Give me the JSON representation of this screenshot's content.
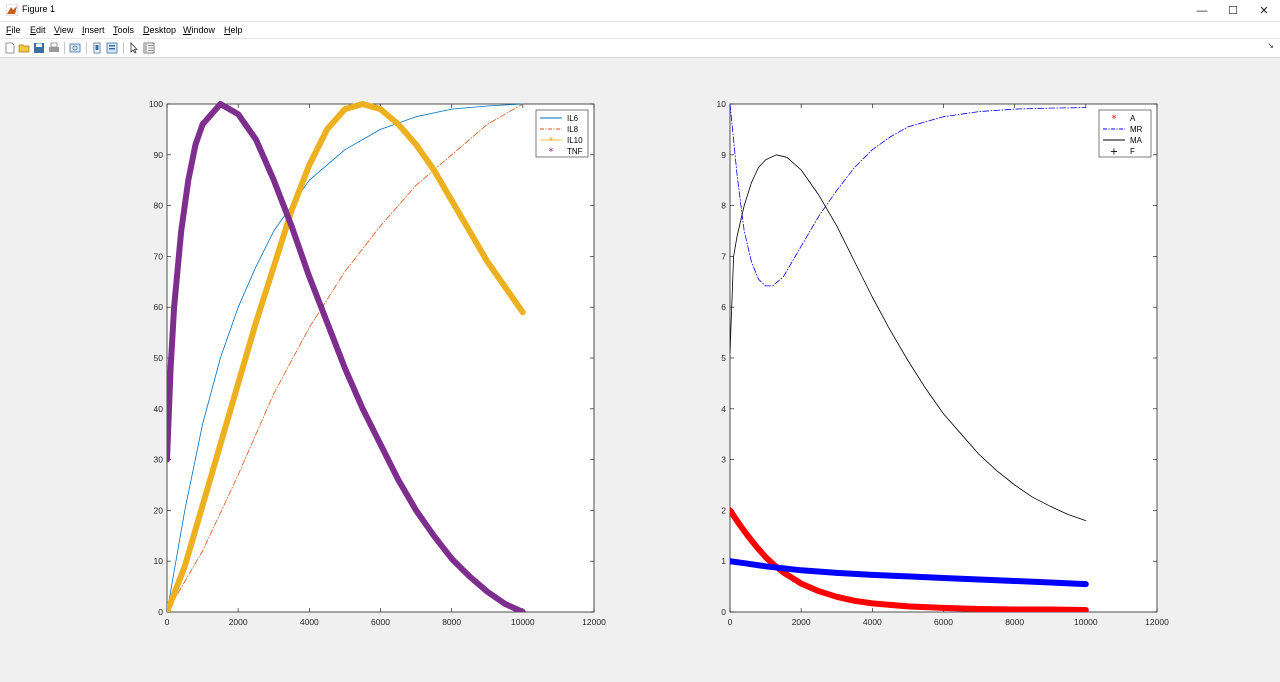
{
  "window": {
    "title": "Figure 1"
  },
  "menu": [
    "File",
    "Edit",
    "View",
    "Insert",
    "Tools",
    "Desktop",
    "Window",
    "Help"
  ],
  "toolbar": [
    "new-figure",
    "open-file",
    "save",
    "print",
    "print-preview",
    "toggle-legend",
    "insert-colorbar",
    "pointer",
    "toggle-property-editor"
  ],
  "colors": {
    "il6": "#0072bd",
    "il8": "#d95319",
    "il10": "#edb120",
    "tnf": "#7e2f8e",
    "a": "#ff0000",
    "mr": "#0000ff",
    "ma": "#000000",
    "f": "#0000ff"
  },
  "chart_data": [
    {
      "type": "line",
      "xlim": [
        0,
        12000
      ],
      "ylim": [
        0,
        100
      ],
      "xticks": [
        "0",
        "2000",
        "4000",
        "6000",
        "8000",
        "10000",
        "12000"
      ],
      "yticks": [
        "0",
        "10",
        "20",
        "30",
        "40",
        "50",
        "60",
        "70",
        "80",
        "90",
        "100"
      ],
      "legend": {
        "position": "top-right",
        "entries": [
          "IL6",
          "IL8",
          "IL10",
          "TNF"
        ]
      },
      "series": [
        {
          "name": "IL6",
          "style": "solid",
          "color": "#0072bd",
          "width": 0.8,
          "points": [
            [
              0,
              0
            ],
            [
              500,
              20
            ],
            [
              1000,
              37
            ],
            [
              1500,
              50
            ],
            [
              2000,
              60
            ],
            [
              2500,
              68
            ],
            [
              3000,
              75
            ],
            [
              3500,
              80
            ],
            [
              4000,
              85
            ],
            [
              5000,
              91
            ],
            [
              6000,
              95
            ],
            [
              7000,
              97.5
            ],
            [
              8000,
              99
            ],
            [
              9000,
              99.6
            ],
            [
              10000,
              100
            ]
          ]
        },
        {
          "name": "IL8",
          "style": "dashdot",
          "color": "#d95319",
          "width": 0.8,
          "points": [
            [
              0,
              0
            ],
            [
              1000,
              12
            ],
            [
              2000,
              27
            ],
            [
              3000,
              43
            ],
            [
              4000,
              56
            ],
            [
              5000,
              67
            ],
            [
              6000,
              76
            ],
            [
              7000,
              84
            ],
            [
              8000,
              90
            ],
            [
              9000,
              96
            ],
            [
              10000,
              100
            ]
          ]
        },
        {
          "name": "IL10",
          "style": "thick",
          "color": "#edb120",
          "width": 6,
          "points": [
            [
              0,
              0
            ],
            [
              500,
              9
            ],
            [
              1000,
              21
            ],
            [
              1500,
              33
            ],
            [
              2000,
              45
            ],
            [
              2500,
              57
            ],
            [
              3000,
              68
            ],
            [
              3500,
              79
            ],
            [
              4000,
              88
            ],
            [
              4500,
              95
            ],
            [
              5000,
              99
            ],
            [
              5500,
              100
            ],
            [
              6000,
              99
            ],
            [
              6500,
              96
            ],
            [
              7000,
              92
            ],
            [
              7500,
              87
            ],
            [
              8000,
              81
            ],
            [
              8500,
              75
            ],
            [
              9000,
              69
            ],
            [
              9500,
              64
            ],
            [
              10000,
              59
            ]
          ]
        },
        {
          "name": "TNF",
          "style": "thick",
          "color": "#7e2f8e",
          "width": 6,
          "points": [
            [
              0,
              30
            ],
            [
              100,
              48
            ],
            [
              200,
              60
            ],
            [
              400,
              75
            ],
            [
              600,
              85
            ],
            [
              800,
              92
            ],
            [
              1000,
              96
            ],
            [
              1500,
              100
            ],
            [
              2000,
              98
            ],
            [
              2500,
              93
            ],
            [
              3000,
              85
            ],
            [
              3500,
              76
            ],
            [
              4000,
              66
            ],
            [
              4500,
              57
            ],
            [
              5000,
              48
            ],
            [
              5500,
              40
            ],
            [
              6000,
              33
            ],
            [
              6500,
              26
            ],
            [
              7000,
              20
            ],
            [
              7500,
              15
            ],
            [
              8000,
              10.5
            ],
            [
              8500,
              7
            ],
            [
              9000,
              4
            ],
            [
              9500,
              1.6
            ],
            [
              10000,
              0
            ]
          ]
        }
      ]
    },
    {
      "type": "line",
      "xlim": [
        0,
        12000
      ],
      "ylim": [
        0,
        10
      ],
      "xticks": [
        "0",
        "2000",
        "4000",
        "6000",
        "8000",
        "10000",
        "12000"
      ],
      "yticks": [
        "0",
        "1",
        "2",
        "3",
        "4",
        "5",
        "6",
        "7",
        "8",
        "9",
        "10"
      ],
      "legend": {
        "position": "top-right",
        "entries": [
          "A",
          "MR",
          "MA",
          "F"
        ]
      },
      "series": [
        {
          "name": "A",
          "style": "thick",
          "color": "#ff0000",
          "width": 6,
          "points": [
            [
              0,
              2
            ],
            [
              250,
              1.74
            ],
            [
              500,
              1.5
            ],
            [
              750,
              1.28
            ],
            [
              1000,
              1.08
            ],
            [
              1250,
              0.92
            ],
            [
              1500,
              0.78
            ],
            [
              2000,
              0.56
            ],
            [
              2500,
              0.41
            ],
            [
              3000,
              0.3
            ],
            [
              3500,
              0.22
            ],
            [
              4000,
              0.17
            ],
            [
              5000,
              0.11
            ],
            [
              6000,
              0.08
            ],
            [
              7000,
              0.06
            ],
            [
              8000,
              0.05
            ],
            [
              9000,
              0.05
            ],
            [
              10000,
              0.04
            ]
          ]
        },
        {
          "name": "MR",
          "style": "dashdot",
          "color": "#0000ff",
          "width": 0.8,
          "points": [
            [
              0,
              10
            ],
            [
              200,
              8.6
            ],
            [
              400,
              7.5
            ],
            [
              600,
              6.9
            ],
            [
              800,
              6.55
            ],
            [
              1000,
              6.42
            ],
            [
              1200,
              6.42
            ],
            [
              1500,
              6.6
            ],
            [
              2000,
              7.2
            ],
            [
              2500,
              7.8
            ],
            [
              3000,
              8.3
            ],
            [
              3500,
              8.75
            ],
            [
              4000,
              9.1
            ],
            [
              4500,
              9.35
            ],
            [
              5000,
              9.55
            ],
            [
              6000,
              9.75
            ],
            [
              7000,
              9.85
            ],
            [
              8000,
              9.9
            ],
            [
              9000,
              9.92
            ],
            [
              10000,
              9.93
            ]
          ]
        },
        {
          "name": "MA",
          "style": "solid",
          "color": "#000000",
          "width": 0.8,
          "points": [
            [
              0,
              5.1
            ],
            [
              100,
              7.0
            ],
            [
              200,
              7.4
            ],
            [
              400,
              8.0
            ],
            [
              600,
              8.45
            ],
            [
              800,
              8.75
            ],
            [
              1000,
              8.9
            ],
            [
              1300,
              9
            ],
            [
              1600,
              8.95
            ],
            [
              2000,
              8.7
            ],
            [
              2500,
              8.2
            ],
            [
              3000,
              7.6
            ],
            [
              3500,
              6.9
            ],
            [
              4000,
              6.2
            ],
            [
              4500,
              5.55
            ],
            [
              5000,
              4.95
            ],
            [
              5500,
              4.4
            ],
            [
              6000,
              3.9
            ],
            [
              6500,
              3.5
            ],
            [
              7000,
              3.1
            ],
            [
              7500,
              2.78
            ],
            [
              8000,
              2.5
            ],
            [
              8500,
              2.26
            ],
            [
              9000,
              2.08
            ],
            [
              9500,
              1.92
            ],
            [
              10000,
              1.8
            ]
          ]
        },
        {
          "name": "F",
          "style": "thick",
          "color": "#0000ff",
          "width": 6,
          "points": [
            [
              0,
              1
            ],
            [
              500,
              0.95
            ],
            [
              1000,
              0.9
            ],
            [
              1500,
              0.86
            ],
            [
              2000,
              0.82
            ],
            [
              3000,
              0.77
            ],
            [
              4000,
              0.73
            ],
            [
              5000,
              0.7
            ],
            [
              6000,
              0.67
            ],
            [
              7000,
              0.64
            ],
            [
              8000,
              0.61
            ],
            [
              9000,
              0.58
            ],
            [
              10000,
              0.55
            ]
          ]
        }
      ]
    }
  ]
}
